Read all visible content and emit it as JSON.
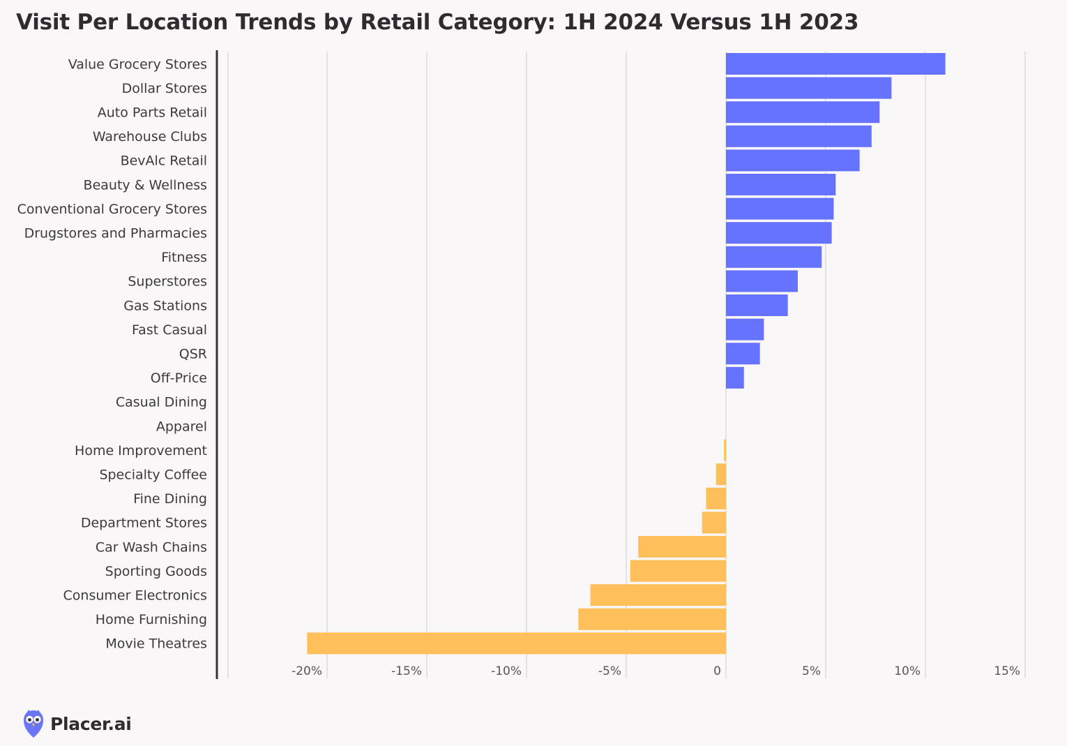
{
  "chart_data": {
    "type": "bar",
    "orientation": "horizontal",
    "title": "Visit Per Location Trends by Retail Category: 1H 2024 Versus 1H 2023",
    "categories": [
      "Value Grocery Stores",
      "Dollar Stores",
      "Auto Parts Retail",
      "Warehouse Clubs",
      "BevAlc Retail",
      "Beauty & Wellness",
      "Conventional Grocery Stores",
      "Drugstores and Pharmacies",
      "Fitness",
      "Superstores",
      "Gas Stations",
      "Fast Casual",
      "QSR",
      "Off-Price",
      "Casual Dining",
      "Apparel",
      "Home Improvement",
      "Specialty Coffee",
      "Fine Dining",
      "Department Stores",
      "Car Wash Chains",
      "Sporting Goods",
      "Consumer Electronics",
      "Home Furnishing",
      "Movie Theatres"
    ],
    "values": [
      11.0,
      8.3,
      7.7,
      7.3,
      6.7,
      5.5,
      5.4,
      5.3,
      4.8,
      3.6,
      3.1,
      1.9,
      1.7,
      0.9,
      0.0,
      0.0,
      -0.1,
      -0.5,
      -1.0,
      -1.2,
      -4.4,
      -4.8,
      -6.8,
      -7.4,
      -21.0
    ],
    "x_ticks": [
      -20,
      -15,
      -10,
      -5,
      0,
      5,
      10,
      15
    ],
    "x_tick_labels": [
      "-20%",
      "-15%",
      "-10%",
      "-5%",
      "0",
      "5%",
      "10%",
      "15%"
    ],
    "xlim": [
      -25,
      15
    ],
    "grid": true,
    "legend": "none",
    "colors": {
      "positive": "#6673fe",
      "negative": "#ffbf5b",
      "grid": "#d6d3d6",
      "axis": "#333333"
    }
  },
  "brand": {
    "name": "Placer.ai",
    "logo_icon": "owl-logo-icon",
    "logo_color": "#6a76f6"
  }
}
